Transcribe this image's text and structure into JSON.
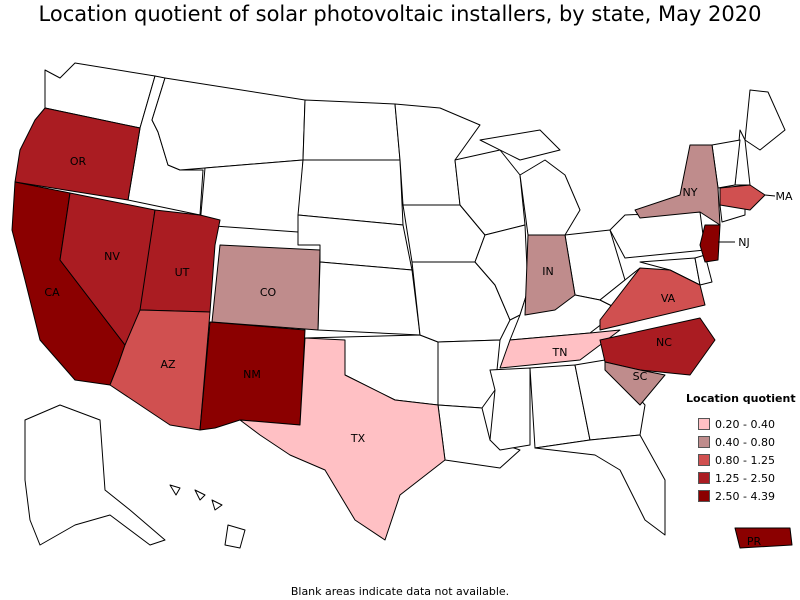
{
  "title": "Location quotient of solar photovoltaic installers, by state, May 2020",
  "footnote": "Blank areas indicate data not available.",
  "legend": {
    "title": "Location quotient",
    "items": [
      {
        "range": "0.20 - 0.40",
        "color": "#ffc0c4"
      },
      {
        "range": "0.40 - 0.80",
        "color": "#bf8c8c"
      },
      {
        "range": "0.80 - 1.25",
        "color": "#d05050"
      },
      {
        "range": "1.25 - 2.50",
        "color": "#aa1c22"
      },
      {
        "range": "2.50 - 4.39",
        "color": "#8b0000"
      }
    ]
  },
  "colors": {
    "no_data": "#ffffff",
    "border": "#000000"
  },
  "states": {
    "OR": "1.25 - 2.50",
    "CA": "2.50 - 4.39",
    "NV": "1.25 - 2.50",
    "UT": "1.25 - 2.50",
    "AZ": "0.80 - 1.25",
    "CO": "0.40 - 0.80",
    "NM": "2.50 - 4.39",
    "TX": "0.20 - 0.40",
    "IN": "0.40 - 0.80",
    "TN": "0.20 - 0.40",
    "NC": "1.25 - 2.50",
    "SC": "0.40 - 0.80",
    "VA": "0.80 - 1.25",
    "NY": "0.40 - 0.80",
    "MA": "0.80 - 1.25",
    "NJ": "2.50 - 4.39",
    "PR": "2.50 - 4.39"
  },
  "labels": {
    "OR": "OR",
    "CA": "CA",
    "NV": "NV",
    "UT": "UT",
    "AZ": "AZ",
    "CO": "CO",
    "NM": "NM",
    "TX": "TX",
    "IN": "IN",
    "TN": "TN",
    "NC": "NC",
    "SC": "SC",
    "VA": "VA",
    "NY": "NY",
    "MA": "MA",
    "NJ": "NJ",
    "PR": "PR"
  }
}
